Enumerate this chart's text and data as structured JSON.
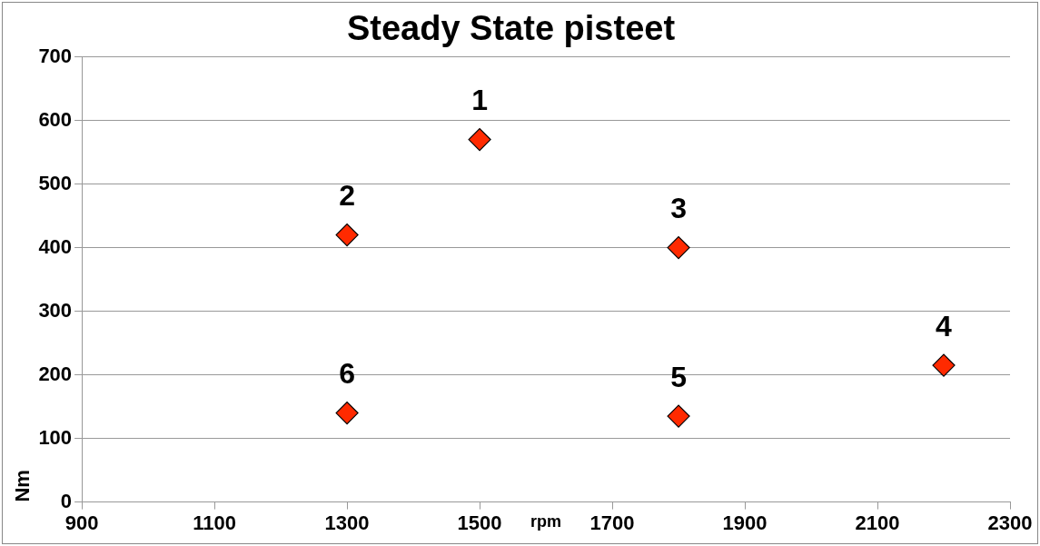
{
  "chart_data": {
    "type": "scatter",
    "title": "Steady State pisteet",
    "xlabel": "rpm",
    "ylabel": "Nm",
    "x": [
      1500,
      1300,
      1800,
      2200,
      1800,
      1300
    ],
    "series": [
      {
        "color": "#ff2a00",
        "values": [
          570,
          420,
          400,
          215,
          135,
          140
        ]
      }
    ],
    "xlim": [
      900,
      2300
    ],
    "xticks": [
      900,
      1100,
      1300,
      1500,
      1700,
      1900,
      2100,
      2300
    ],
    "ylim": [
      0,
      700
    ],
    "yticks": [
      0,
      100,
      200,
      300,
      400,
      500,
      600,
      700
    ],
    "grid": "y",
    "legend": false,
    "marker": "diamond",
    "annotations": [
      {
        "text": "1",
        "x": 1500,
        "y": 570
      },
      {
        "text": "2",
        "x": 1300,
        "y": 420
      },
      {
        "text": "3",
        "x": 1800,
        "y": 400
      },
      {
        "text": "4",
        "x": 2200,
        "y": 215
      },
      {
        "text": "5",
        "x": 1800,
        "y": 135
      },
      {
        "text": "6",
        "x": 1300,
        "y": 140
      }
    ]
  }
}
